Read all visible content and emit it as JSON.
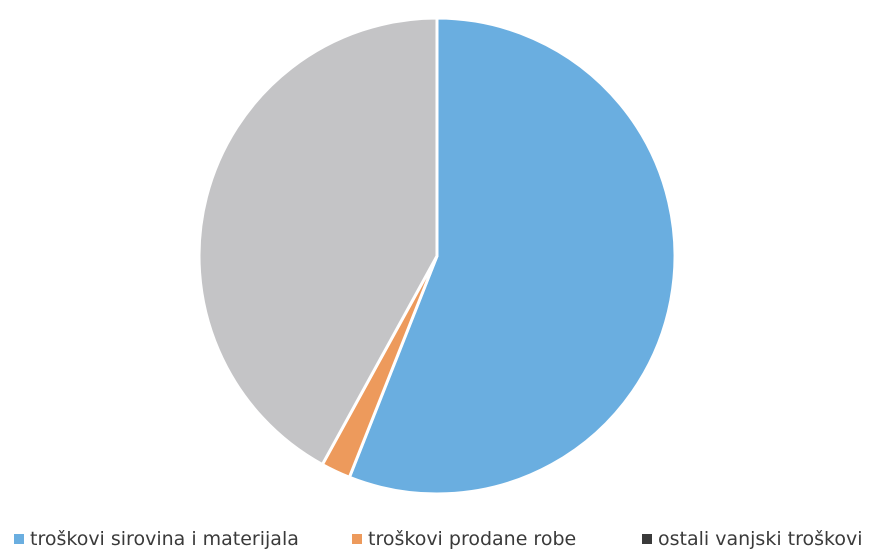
{
  "chart_data": {
    "type": "pie",
    "categories": [
      "troškovi sirovina i materijala",
      "troškovi prodane robe",
      "ostali vanjski troškovi"
    ],
    "values": [
      56,
      2,
      42
    ],
    "colors": [
      "#6aaee0",
      "#ed9a5c",
      "#c4c4c6"
    ],
    "legend_colors": [
      "#6aaee0",
      "#ed9a5c",
      "#3a3a3a"
    ],
    "start_angle_deg": 0,
    "direction": "clockwise",
    "legend_position": "bottom"
  }
}
